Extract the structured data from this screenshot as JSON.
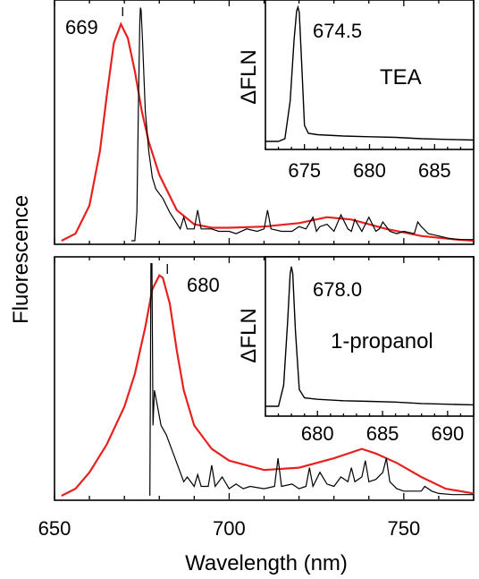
{
  "ylabel": "Fluorescence",
  "xlabel": "Wavelength (nm)",
  "x_ticks": [
    "650",
    "700",
    "750"
  ],
  "colors": {
    "black_trace": "#000000",
    "red_trace": "#e8211f"
  },
  "chart_data": [
    {
      "type": "line",
      "panel": "top",
      "xlim": [
        650,
        770
      ],
      "xlabel": "Wavelength (nm)",
      "ylabel": "Fluorescence",
      "peak_label": "669",
      "series": [
        {
          "color": "#e8211f",
          "x": [
            652,
            656,
            660,
            663,
            665,
            667,
            669,
            671,
            673,
            675,
            677,
            680,
            685,
            690,
            695,
            700,
            710,
            720,
            728,
            735,
            745,
            755,
            765,
            770
          ],
          "y": [
            0.0,
            0.03,
            0.15,
            0.38,
            0.62,
            0.84,
            0.92,
            0.86,
            0.72,
            0.55,
            0.42,
            0.28,
            0.13,
            0.07,
            0.055,
            0.055,
            0.06,
            0.075,
            0.1,
            0.09,
            0.05,
            0.02,
            0.005,
            0.0
          ]
        },
        {
          "color": "#000000",
          "x": [
            672,
            673,
            673.6,
            674,
            674.4,
            674.6,
            674.8,
            675.2,
            676,
            677,
            678,
            679,
            681,
            683,
            686,
            687,
            688,
            690,
            691,
            692,
            695,
            697,
            700,
            702,
            705,
            708,
            710,
            711,
            712,
            715,
            718,
            720,
            722,
            724,
            725,
            726,
            728,
            730,
            732,
            734,
            735,
            736,
            738,
            740,
            742,
            743,
            744,
            746,
            748,
            750,
            753,
            754,
            755,
            757,
            760,
            763,
            766,
            770
          ],
          "y": [
            0.0,
            0.0,
            0.12,
            0.55,
            0.92,
            0.99,
            0.98,
            0.85,
            0.55,
            0.38,
            0.27,
            0.22,
            0.18,
            0.12,
            0.05,
            0.1,
            0.05,
            0.05,
            0.13,
            0.05,
            0.05,
            0.04,
            0.04,
            0.03,
            0.05,
            0.04,
            0.05,
            0.13,
            0.05,
            0.04,
            0.04,
            0.06,
            0.05,
            0.1,
            0.04,
            0.06,
            0.07,
            0.04,
            0.11,
            0.05,
            0.04,
            0.09,
            0.04,
            0.1,
            0.04,
            0.05,
            0.08,
            0.04,
            0.03,
            0.04,
            0.03,
            0.08,
            0.06,
            0.03,
            0.02,
            0.01,
            0.005,
            0.005
          ]
        }
      ],
      "inset": {
        "xlim": [
          672,
          688
        ],
        "x_ticks": [
          "675",
          "680",
          "685"
        ],
        "ylabel": "ΔFLN",
        "peak_label": "674.5",
        "solvent": "TEA",
        "series": [
          {
            "color": "#000000",
            "x": [
              672,
              673,
              673.5,
              673.9,
              674.2,
              674.4,
              674.5,
              674.6,
              674.8,
              675.0,
              675.3,
              676,
              678,
              680,
              682,
              684,
              686,
              688
            ],
            "y": [
              0.0,
              0.0,
              0.02,
              0.3,
              0.75,
              0.97,
              1.0,
              0.96,
              0.55,
              0.12,
              0.06,
              0.05,
              0.04,
              0.035,
              0.03,
              0.02,
              0.015,
              0.01
            ]
          }
        ]
      }
    },
    {
      "type": "line",
      "panel": "bottom",
      "xlim": [
        650,
        770
      ],
      "xlabel": "Wavelength (nm)",
      "ylabel": "Fluorescence",
      "peak_label": "680",
      "series": [
        {
          "color": "#e8211f",
          "x": [
            652,
            656,
            660,
            665,
            670,
            673,
            676,
            678,
            680,
            681,
            683,
            685,
            687,
            690,
            695,
            700,
            710,
            720,
            730,
            738,
            742,
            748,
            755,
            762,
            770
          ],
          "y": [
            0.0,
            0.03,
            0.1,
            0.22,
            0.38,
            0.52,
            0.72,
            0.88,
            0.94,
            0.93,
            0.82,
            0.62,
            0.45,
            0.3,
            0.2,
            0.15,
            0.11,
            0.12,
            0.16,
            0.2,
            0.18,
            0.14,
            0.08,
            0.03,
            0.01
          ]
        },
        {
          "color": "#000000",
          "x": [
            677.3,
            677.6,
            677.9,
            678.2,
            678.6,
            679.5,
            680.5,
            682,
            684,
            686,
            687,
            688,
            690,
            691,
            692,
            694,
            695,
            696,
            698,
            700,
            702,
            704,
            706,
            710,
            713,
            714,
            715,
            718,
            720,
            722,
            723,
            724,
            726,
            728,
            730,
            732,
            734,
            735,
            736,
            738,
            739,
            740,
            742,
            744,
            745,
            746,
            748,
            750,
            752,
            755,
            756,
            758,
            760,
            764,
            768,
            770
          ],
          "y": [
            0.0,
            0.99,
            0.99,
            0.3,
            0.45,
            0.38,
            0.3,
            0.26,
            0.18,
            0.1,
            0.06,
            0.08,
            0.04,
            0.09,
            0.04,
            0.04,
            0.13,
            0.04,
            0.08,
            0.03,
            0.05,
            0.03,
            0.04,
            0.03,
            0.04,
            0.16,
            0.04,
            0.05,
            0.03,
            0.04,
            0.12,
            0.04,
            0.1,
            0.05,
            0.04,
            0.08,
            0.06,
            0.12,
            0.06,
            0.08,
            0.15,
            0.06,
            0.07,
            0.1,
            0.16,
            0.06,
            0.03,
            0.02,
            0.02,
            0.02,
            0.04,
            0.02,
            0.01,
            0.005,
            0.005,
            0.005
          ]
        }
      ],
      "inset": {
        "xlim": [
          676,
          692
        ],
        "x_ticks": [
          "680",
          "685",
          "690"
        ],
        "ylabel": "ΔFLN",
        "peak_label": "678.0",
        "solvent": "1-propanol",
        "series": [
          {
            "color": "#000000",
            "x": [
              676,
              677,
              677.4,
              677.7,
              677.9,
              678.0,
              678.1,
              678.3,
              678.6,
              679,
              680,
              682,
              684,
              686,
              688,
              690,
              692
            ],
            "y": [
              0.0,
              0.0,
              0.15,
              0.6,
              0.95,
              1.0,
              0.95,
              0.55,
              0.12,
              0.06,
              0.05,
              0.04,
              0.035,
              0.03,
              0.02,
              0.015,
              0.01
            ]
          }
        ]
      }
    }
  ]
}
